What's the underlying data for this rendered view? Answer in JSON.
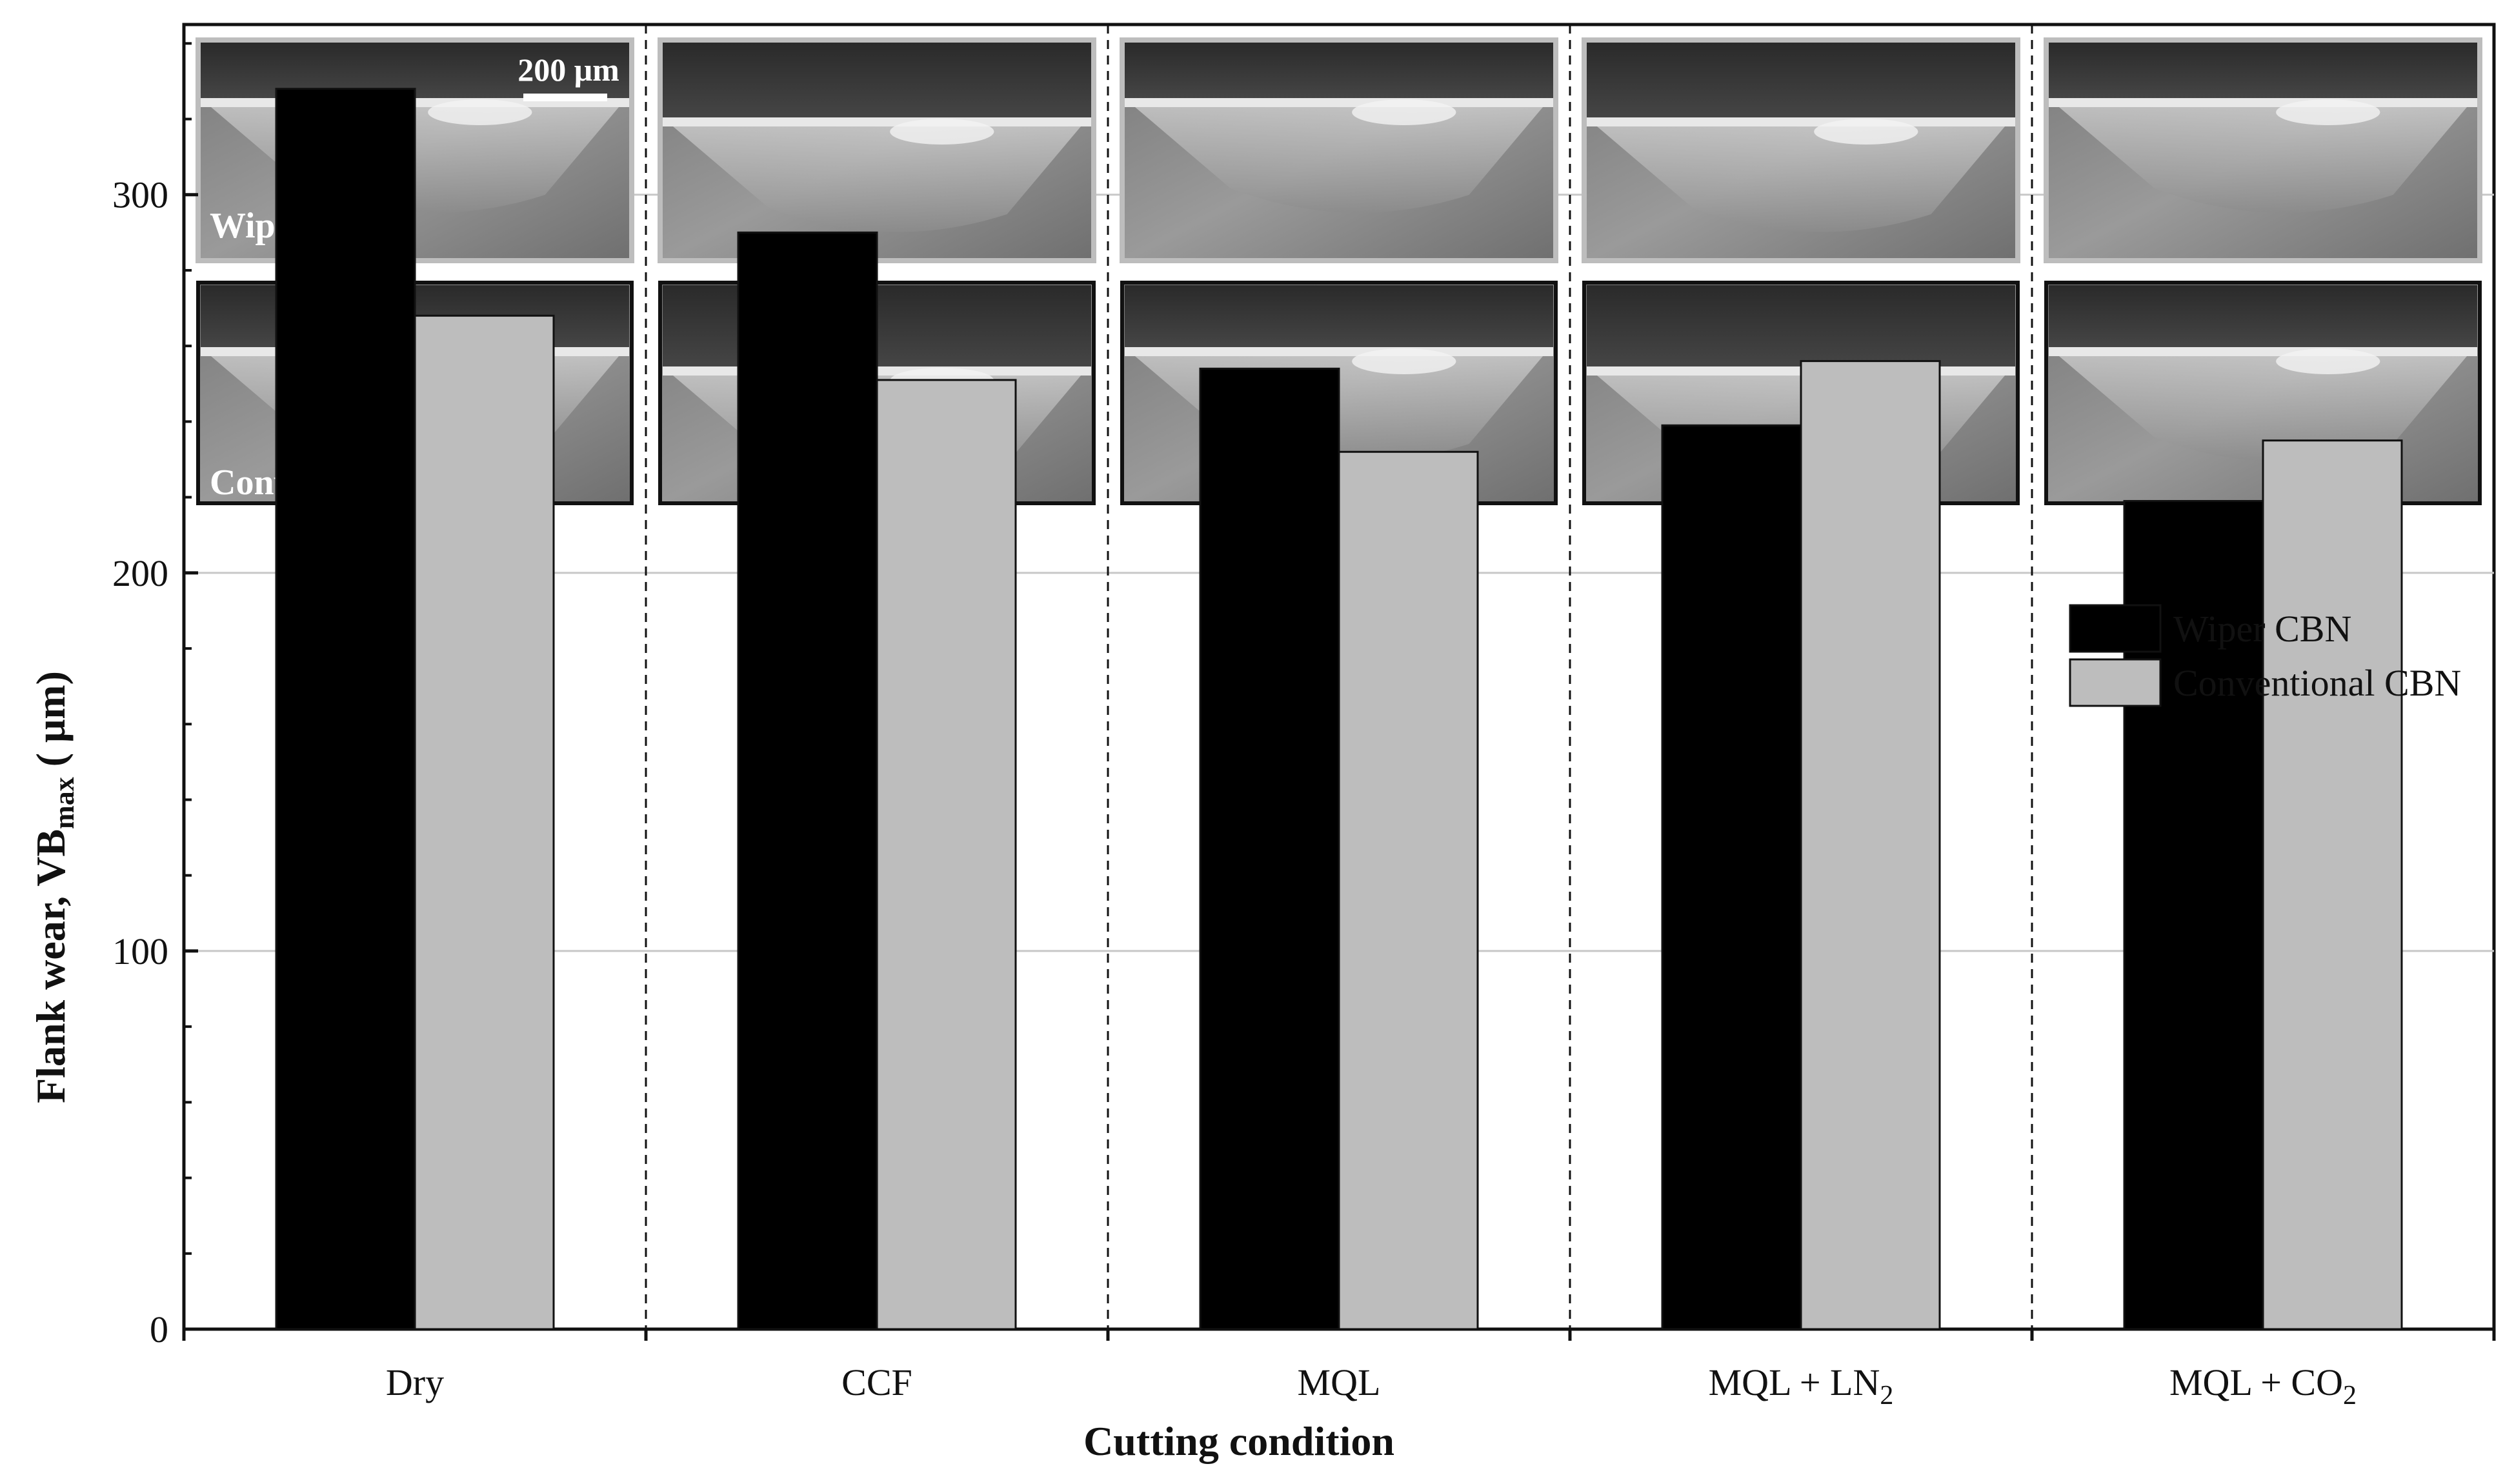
{
  "chart_data": {
    "type": "bar",
    "categories": [
      "Dry",
      "CCF",
      "MQL",
      "MQL + LN2",
      "MQL + CO2"
    ],
    "category_labels": [
      {
        "main": "Dry",
        "sub": ""
      },
      {
        "main": "CCF",
        "sub": ""
      },
      {
        "main": "MQL",
        "sub": ""
      },
      {
        "main": "MQL + LN",
        "sub": "2"
      },
      {
        "main": "MQL + CO",
        "sub": "2"
      }
    ],
    "series": [
      {
        "name": "Wiper CBN",
        "values": [
          328,
          290,
          254,
          239,
          219
        ],
        "color": "#000000"
      },
      {
        "name": "Conventional CBN",
        "values": [
          268,
          251,
          232,
          256,
          235
        ],
        "color": "#bdbdbd"
      }
    ],
    "xlabel": "Cutting condition",
    "ylabel_main": "Flank wear, VB",
    "ylabel_sub": "max",
    "ylabel_unit": " ( μm)",
    "ylim": [
      0,
      345
    ],
    "yticks": [
      0,
      100,
      200,
      300
    ],
    "grid": true,
    "legend_position": "top-right",
    "image_row_labels": [
      "Wiper",
      "Conventional"
    ],
    "scale_bar_label": "200 μm"
  }
}
